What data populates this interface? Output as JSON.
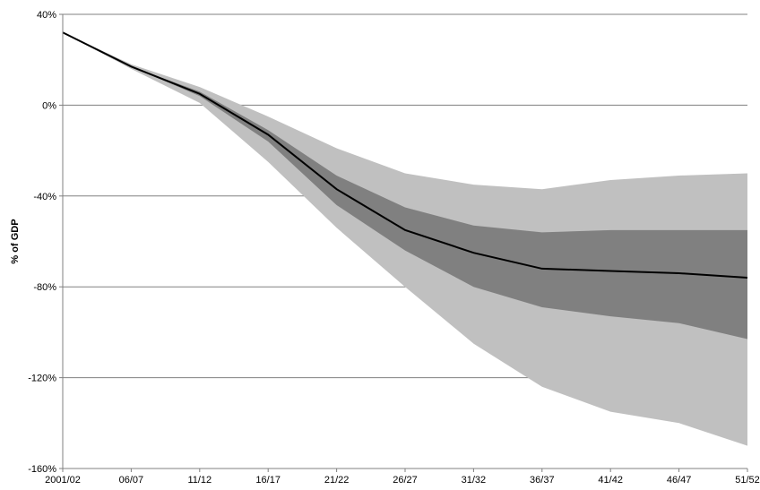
{
  "chart_data": {
    "type": "area",
    "title": "",
    "xlabel": "",
    "ylabel": "% of GDP",
    "ylim": [
      -160,
      40
    ],
    "yticks": [
      40,
      0,
      -40,
      -80,
      -120,
      -160
    ],
    "ytick_labels": [
      "40%",
      "0%",
      "-40%",
      "-80%",
      "-120%",
      "-160%"
    ],
    "x_categories": [
      "2001/02",
      "06/07",
      "11/12",
      "16/17",
      "21/22",
      "26/27",
      "31/32",
      "36/37",
      "41/42",
      "46/47",
      "51/52"
    ],
    "grid": "horizontal",
    "colors": {
      "outer_band": "#c0c0c0",
      "inner_band": "#808080",
      "central_line": "#000000",
      "gridline": "#808080"
    },
    "x": [
      "2001/02",
      "06/07",
      "11/12",
      "16/17",
      "21/22",
      "26/27",
      "31/32",
      "36/37",
      "41/42",
      "46/47",
      "51/52"
    ],
    "series": [
      {
        "role": "central projection",
        "values": [
          32,
          17,
          5,
          -13,
          -37,
          -55,
          -65,
          -72,
          -73,
          -74,
          -76
        ]
      },
      {
        "role": "inner band upper",
        "values": [
          32,
          17,
          6,
          -11,
          -31,
          -45,
          -53,
          -56,
          -55,
          -55,
          -55
        ]
      },
      {
        "role": "inner band lower",
        "values": [
          32,
          17,
          4,
          -16,
          -44,
          -64,
          -80,
          -89,
          -93,
          -96,
          -103
        ]
      },
      {
        "role": "outer band upper",
        "values": [
          32,
          18,
          8,
          -5,
          -19,
          -30,
          -35,
          -37,
          -33,
          -31,
          -30
        ]
      },
      {
        "role": "outer band lower",
        "values": [
          32,
          16,
          1,
          -25,
          -54,
          -80,
          -105,
          -124,
          -135,
          -140,
          -150
        ]
      }
    ]
  }
}
